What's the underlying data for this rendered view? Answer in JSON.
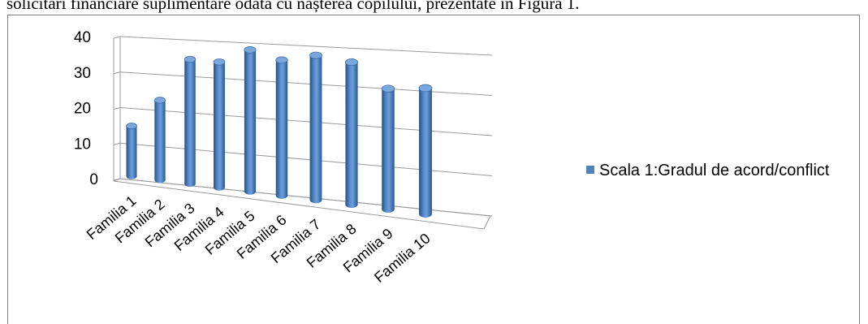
{
  "document": {
    "text_line": "solicitări financiare suplimentare odată cu nașterea copilului, prezentate în Figura 1."
  },
  "chart_data": {
    "type": "bar",
    "shape": "cylinder",
    "view": "3d-perspective",
    "categories": [
      "Familia 1",
      "Familia 2",
      "Familia 3",
      "Familia 4",
      "Familia 5",
      "Familia 6",
      "Familia 7",
      "Familia 8",
      "Familia 9",
      "Familia 10"
    ],
    "series": [
      {
        "name": "Scala 1:Gradul de acord/conflict",
        "color": "#4f81bd",
        "values": [
          14,
          22,
          34,
          34,
          38,
          36,
          38,
          37,
          31,
          32
        ]
      }
    ],
    "ylim": [
      0,
      40
    ],
    "yticks": [
      "0",
      "10",
      "20",
      "30",
      "40"
    ],
    "grid": true,
    "legend": "right"
  }
}
